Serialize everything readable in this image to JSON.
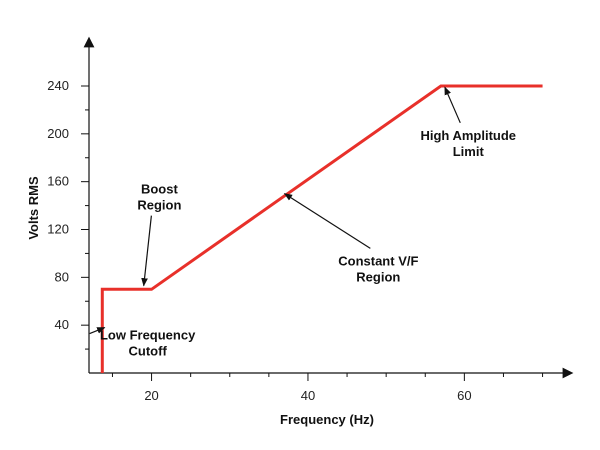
{
  "chart_data": {
    "type": "line",
    "xlabel": "Frequency (Hz)",
    "ylabel": "Volts RMS",
    "xlim": [
      12,
      72
    ],
    "ylim": [
      0,
      260
    ],
    "x_ticks": [
      20,
      40,
      60
    ],
    "y_ticks": [
      40,
      80,
      120,
      160,
      200,
      240
    ],
    "x_minor_ticks": [
      15,
      25,
      30,
      35,
      45,
      50,
      55,
      65,
      70
    ],
    "y_minor_ticks": [
      20,
      60,
      100,
      140,
      180,
      220
    ],
    "grid": false,
    "series": [
      {
        "color": "#e8302a",
        "x": [
          13.7,
          13.7,
          20,
          57,
          70
        ],
        "y": [
          0,
          70,
          70,
          240,
          240
        ]
      }
    ],
    "annotations": [
      {
        "lines": [
          "Boost",
          "Region"
        ],
        "target": [
          19,
          73
        ],
        "text_at": [
          21,
          150
        ]
      },
      {
        "lines": [
          "Constant V/F",
          "Region"
        ],
        "target": [
          37,
          150
        ],
        "text_at": [
          49,
          90
        ]
      },
      {
        "lines": [
          "High Amplitude",
          "Limit"
        ],
        "target": [
          57.5,
          239
        ],
        "text_at": [
          60.5,
          195
        ]
      },
      {
        "lines": [
          "Low Frequency",
          "Cutoff"
        ],
        "target": [
          14,
          38
        ],
        "text_at": [
          19.5,
          28
        ]
      }
    ]
  }
}
